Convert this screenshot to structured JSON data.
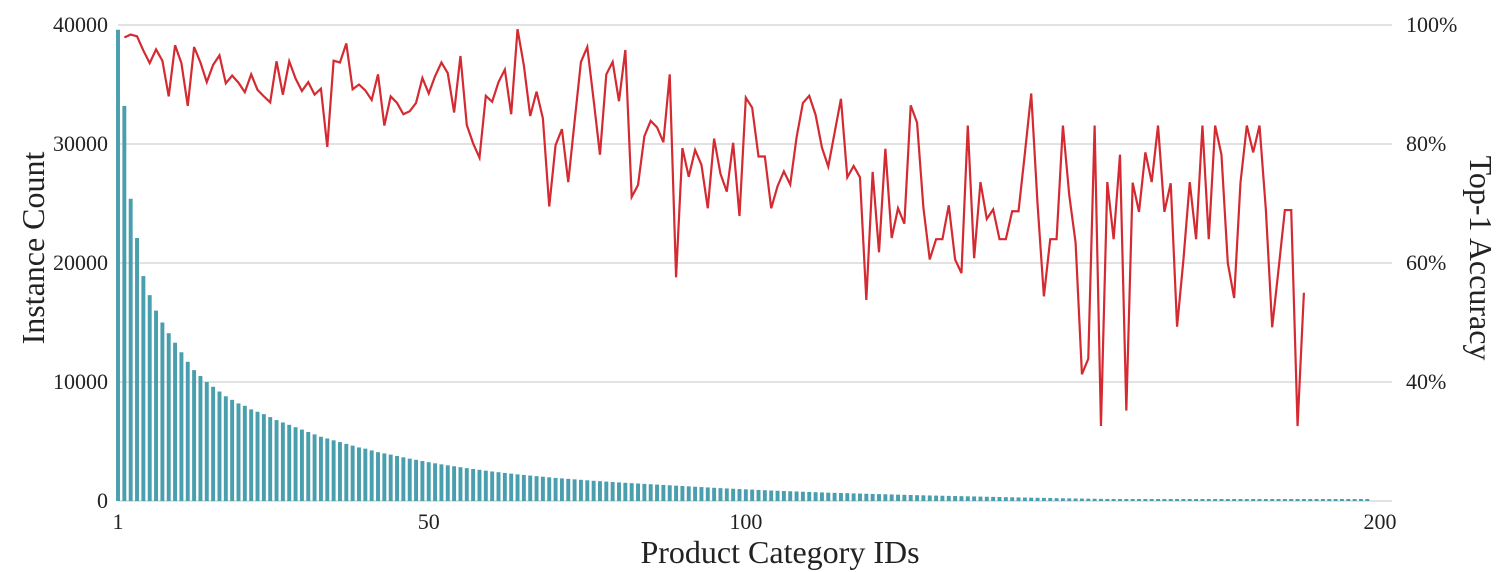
{
  "chart_data": {
    "type": "bar",
    "xlabel": "Product Category IDs",
    "ylabel_left": "Instance Count",
    "ylabel_right": "Top-1 Accuracy",
    "x_range": [
      1,
      200
    ],
    "x_ticks": [
      1,
      50,
      100,
      200
    ],
    "y_left_range": [
      0,
      40000
    ],
    "y_left_ticks": [
      "0",
      "10000",
      "20000",
      "30000",
      "40000"
    ],
    "y_right_range": [
      0.2,
      1.0
    ],
    "y_right_ticks": [
      "40%",
      "60%",
      "80%",
      "100%"
    ],
    "grid": true,
    "legend": "none",
    "colors": {
      "bars": "#4a9fae",
      "line": "#d42a32",
      "grid": "#d0d0d0"
    },
    "series": [
      {
        "type": "bar",
        "axis": "left",
        "x_start": 1,
        "values": [
          39600,
          33200,
          25400,
          22100,
          18900,
          17300,
          16000,
          15000,
          14100,
          13300,
          12500,
          11700,
          11000,
          10500,
          10000,
          9600,
          9200,
          8800,
          8500,
          8200,
          8000,
          7700,
          7500,
          7300,
          7050,
          6800,
          6600,
          6400,
          6200,
          6000,
          5800,
          5600,
          5400,
          5250,
          5100,
          4950,
          4800,
          4650,
          4500,
          4400,
          4250,
          4100,
          4000,
          3900,
          3780,
          3670,
          3560,
          3460,
          3360,
          3260,
          3170,
          3080,
          3000,
          2920,
          2840,
          2760,
          2690,
          2620,
          2550,
          2480,
          2420,
          2360,
          2300,
          2240,
          2190,
          2140,
          2090,
          2040,
          1990,
          1940,
          1900,
          1860,
          1820,
          1780,
          1740,
          1700,
          1665,
          1630,
          1595,
          1560,
          1530,
          1500,
          1470,
          1440,
          1410,
          1380,
          1350,
          1320,
          1290,
          1260,
          1230,
          1200,
          1170,
          1140,
          1110,
          1080,
          1055,
          1030,
          1005,
          980,
          955,
          930,
          905,
          880,
          860,
          840,
          820,
          800,
          780,
          760,
          740,
          720,
          700,
          685,
          670,
          655,
          640,
          625,
          610,
          595,
          580,
          565,
          550,
          535,
          520,
          505,
          490,
          478,
          466,
          454,
          442,
          430,
          418,
          406,
          394,
          382,
          370,
          358,
          346,
          334,
          322,
          310,
          300,
          290,
          280,
          270,
          260,
          250,
          240,
          230,
          220,
          212,
          204,
          196,
          188,
          180,
          172,
          164,
          156,
          148,
          142,
          136,
          130,
          124,
          118,
          112,
          106,
          100,
          95,
          90,
          85,
          80,
          75,
          70,
          66,
          62,
          58,
          54,
          50,
          46,
          42,
          38,
          35,
          32,
          30,
          28,
          26,
          24,
          22,
          20,
          18,
          16,
          14,
          12,
          10,
          8,
          6,
          5
        ]
      },
      {
        "type": "line",
        "axis": "right",
        "x_start": 2,
        "values": [
          0.979,
          0.984,
          0.981,
          0.957,
          0.936,
          0.959,
          0.94,
          0.88,
          0.966,
          0.936,
          0.864,
          0.963,
          0.937,
          0.904,
          0.933,
          0.949,
          0.902,
          0.915,
          0.903,
          0.887,
          0.917,
          0.891,
          0.88,
          0.87,
          0.939,
          0.883,
          0.939,
          0.91,
          0.889,
          0.904,
          0.883,
          0.893,
          0.795,
          0.94,
          0.937,
          0.969,
          0.892,
          0.9,
          0.89,
          0.874,
          0.917,
          0.831,
          0.88,
          0.869,
          0.85,
          0.855,
          0.869,
          0.911,
          0.885,
          0.914,
          0.937,
          0.919,
          0.853,
          0.948,
          0.832,
          0.801,
          0.777,
          0.881,
          0.871,
          0.904,
          0.925,
          0.85,
          0.993,
          0.932,
          0.847,
          0.888,
          0.843,
          0.695,
          0.798,
          0.825,
          0.736,
          0.838,
          0.938,
          0.963,
          0.874,
          0.782,
          0.917,
          0.938,
          0.872,
          0.958,
          0.711,
          0.731,
          0.813,
          0.839,
          0.828,
          0.803,
          0.917,
          0.576,
          0.793,
          0.745,
          0.79,
          0.765,
          0.692,
          0.809,
          0.75,
          0.72,
          0.802,
          0.679,
          0.878,
          0.861,
          0.779,
          0.779,
          0.692,
          0.729,
          0.754,
          0.732,
          0.811,
          0.869,
          0.881,
          0.849,
          0.794,
          0.762,
          0.819,
          0.876,
          0.744,
          0.763,
          0.744,
          0.538,
          0.753,
          0.618,
          0.792,
          0.642,
          0.692,
          0.666,
          0.865,
          0.836,
          0.693,
          0.606,
          0.64,
          0.64,
          0.697,
          0.606,
          0.583,
          0.831,
          0.608,
          0.736,
          0.674,
          0.69,
          0.64,
          0.64,
          0.687,
          0.687,
          0.784,
          0.885,
          0.699,
          0.544,
          0.64,
          0.64,
          0.831,
          0.714,
          0.634,
          0.413,
          0.439,
          0.831,
          0.326,
          0.736,
          0.64,
          0.782,
          0.352,
          0.735,
          0.686,
          0.786,
          0.736,
          0.831,
          0.686,
          0.734,
          0.493,
          0.605,
          0.736,
          0.64,
          0.831,
          0.64,
          0.831,
          0.782,
          0.6,
          0.541,
          0.735,
          0.831,
          0.786,
          0.831,
          0.69,
          0.492,
          0.589,
          0.689,
          0.689,
          0.326,
          0.55
        ]
      }
    ]
  }
}
